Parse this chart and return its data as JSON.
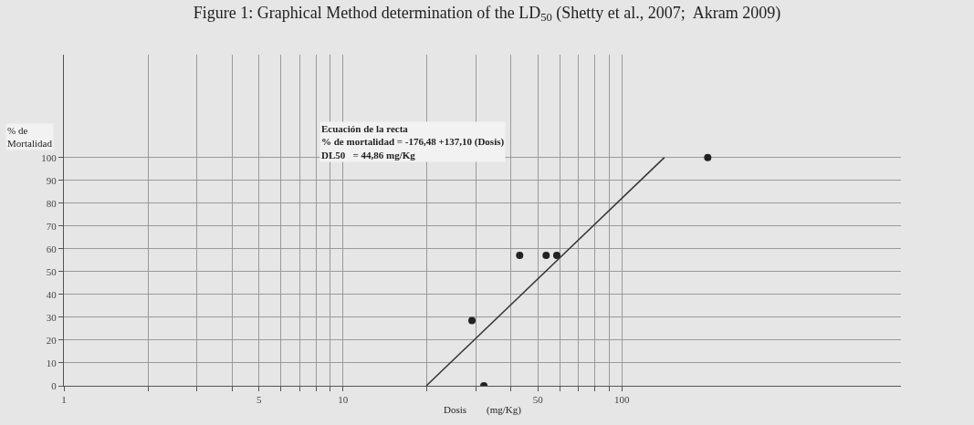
{
  "chart_data": {
    "type": "scatter",
    "title": "Figure 1: Graphical Method determination of the LD$_{50}$ (Shetty et al., 2007;  Akram 2009)",
    "xlabel": "Dosis        (mg/Kg)",
    "ylabel": "% de\nMortalidad",
    "log": "x",
    "xlim": [
      1,
      1000
    ],
    "xticks": [
      1,
      {
        "value": 2,
        "label": null
      },
      {
        "value": 3,
        "label": null
      },
      {
        "value": 4,
        "label": null
      },
      5,
      {
        "value": 6,
        "label": null
      },
      {
        "value": 7,
        "label": null
      },
      {
        "value": 8,
        "label": null
      },
      {
        "value": 9,
        "label": null
      },
      10,
      {
        "value": 20,
        "label": null
      },
      {
        "value": 30,
        "label": null
      },
      {
        "value": 40,
        "label": null
      },
      50,
      {
        "value": 60,
        "label": null
      },
      {
        "value": 70,
        "label": null
      },
      {
        "value": 80,
        "label": null
      },
      {
        "value": 90,
        "label": null
      },
      100
    ],
    "ylim": [
      0,
      145
    ],
    "yticks": [
      0,
      10,
      20,
      30,
      40,
      50,
      60,
      70,
      80,
      90,
      100
    ],
    "grid": true,
    "series": [
      {
        "color": "#222222",
        "marker": "circle",
        "x": [
          29,
          32,
          43,
          53.5,
          58.4,
          203
        ],
        "values": [
          28.6,
          0,
          57.1,
          57.1,
          57.1,
          100
        ]
      },
      {
        "type": "line",
        "color": "#333333",
        "marker": "none",
        "line_style": "solid",
        "x": [
          19.9,
          142
        ],
        "values": [
          0,
          100
        ]
      }
    ],
    "annotations": [
      "Ecuación de la recta\n% de mortalidad = -176,48 +137,10 (Dosis)\nDL50   = 44,86 mg/Kg"
    ]
  }
}
